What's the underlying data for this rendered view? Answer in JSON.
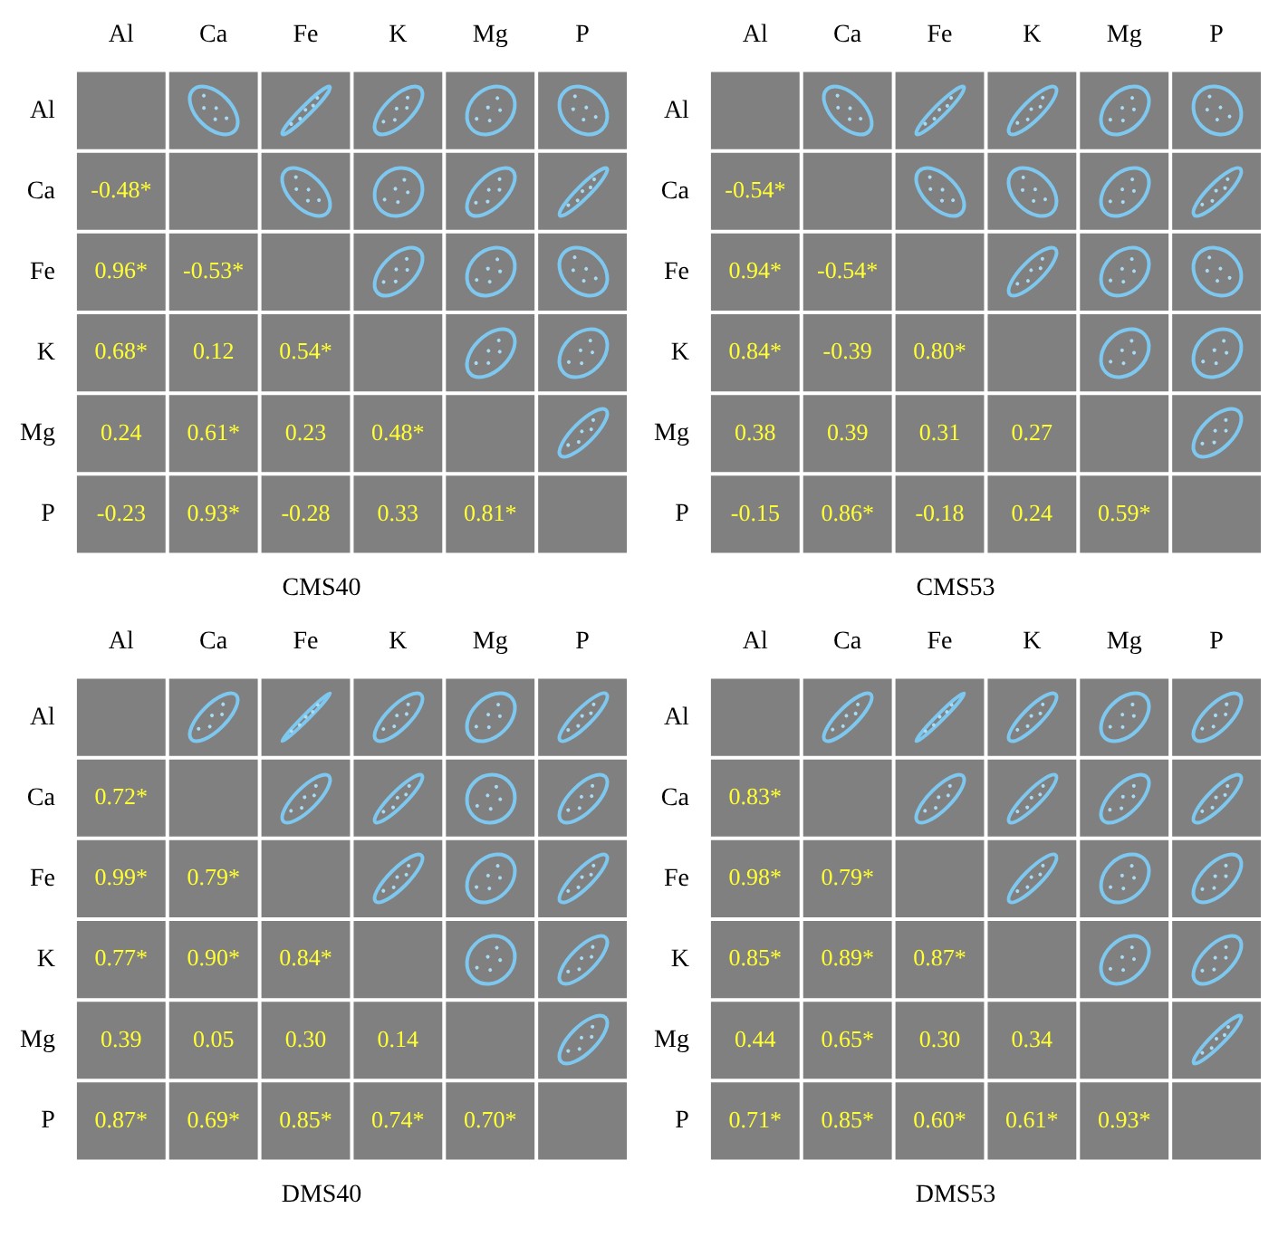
{
  "chart_data": [
    {
      "type": "heatmap",
      "title": "CMS40",
      "categories": [
        "Al",
        "Ca",
        "Fe",
        "K",
        "Mg",
        "P"
      ],
      "y_categories": [
        "Al",
        "Ca",
        "Fe",
        "K",
        "Mg",
        "P"
      ],
      "cells": [
        [
          null,
          null,
          null,
          null,
          null,
          null
        ],
        [
          -0.48,
          null,
          null,
          null,
          null,
          null
        ],
        [
          0.96,
          -0.53,
          null,
          null,
          null,
          null
        ],
        [
          0.68,
          0.12,
          0.54,
          null,
          null,
          null
        ],
        [
          0.24,
          0.61,
          0.23,
          0.48,
          null,
          null
        ],
        [
          -0.23,
          0.93,
          -0.28,
          0.33,
          0.81,
          null
        ]
      ],
      "cell_labels": [
        [
          null,
          null,
          null,
          null,
          null,
          null
        ],
        [
          "-0.48*",
          null,
          null,
          null,
          null,
          null
        ],
        [
          "0.96*",
          "-0.53*",
          null,
          null,
          null,
          null
        ],
        [
          "0.68*",
          "0.12",
          "0.54*",
          null,
          null,
          null
        ],
        [
          "0.24",
          "0.61*",
          "0.23",
          "0.48*",
          null,
          null
        ],
        [
          "-0.23",
          "0.93*",
          "-0.28",
          "0.33",
          "0.81*",
          null
        ]
      ]
    },
    {
      "type": "heatmap",
      "title": "CMS53",
      "categories": [
        "Al",
        "Ca",
        "Fe",
        "K",
        "Mg",
        "P"
      ],
      "y_categories": [
        "Al",
        "Ca",
        "Fe",
        "K",
        "Mg",
        "P"
      ],
      "cells": [
        [
          null,
          null,
          null,
          null,
          null,
          null
        ],
        [
          -0.54,
          null,
          null,
          null,
          null,
          null
        ],
        [
          0.94,
          -0.54,
          null,
          null,
          null,
          null
        ],
        [
          0.84,
          -0.39,
          0.8,
          null,
          null,
          null
        ],
        [
          0.38,
          0.39,
          0.31,
          0.27,
          null,
          null
        ],
        [
          -0.15,
          0.86,
          -0.18,
          0.24,
          0.59,
          null
        ]
      ],
      "cell_labels": [
        [
          null,
          null,
          null,
          null,
          null,
          null
        ],
        [
          "-0.54*",
          null,
          null,
          null,
          null,
          null
        ],
        [
          "0.94*",
          "-0.54*",
          null,
          null,
          null,
          null
        ],
        [
          "0.84*",
          "-0.39",
          "0.80*",
          null,
          null,
          null
        ],
        [
          "0.38",
          "0.39",
          "0.31",
          "0.27",
          null,
          null
        ],
        [
          "-0.15",
          "0.86*",
          "-0.18",
          "0.24",
          "0.59*",
          null
        ]
      ]
    },
    {
      "type": "heatmap",
      "title": "DMS40",
      "categories": [
        "Al",
        "Ca",
        "Fe",
        "K",
        "Mg",
        "P"
      ],
      "y_categories": [
        "Al",
        "Ca",
        "Fe",
        "K",
        "Mg",
        "P"
      ],
      "cells": [
        [
          null,
          null,
          null,
          null,
          null,
          null
        ],
        [
          0.72,
          null,
          null,
          null,
          null,
          null
        ],
        [
          0.99,
          0.79,
          null,
          null,
          null,
          null
        ],
        [
          0.77,
          0.9,
          0.84,
          null,
          null,
          null
        ],
        [
          0.39,
          0.05,
          0.3,
          0.14,
          null,
          null
        ],
        [
          0.87,
          0.69,
          0.85,
          0.74,
          0.7,
          null
        ]
      ],
      "cell_labels": [
        [
          null,
          null,
          null,
          null,
          null,
          null
        ],
        [
          "0.72*",
          null,
          null,
          null,
          null,
          null
        ],
        [
          "0.99*",
          "0.79*",
          null,
          null,
          null,
          null
        ],
        [
          "0.77*",
          "0.90*",
          "0.84*",
          null,
          null,
          null
        ],
        [
          "0.39",
          "0.05",
          "0.30",
          "0.14",
          null,
          null
        ],
        [
          "0.87*",
          "0.69*",
          "0.85*",
          "0.74*",
          "0.70*",
          null
        ]
      ]
    },
    {
      "type": "heatmap",
      "title": "DMS53",
      "categories": [
        "Al",
        "Ca",
        "Fe",
        "K",
        "Mg",
        "P"
      ],
      "y_categories": [
        "Al",
        "Ca",
        "Fe",
        "K",
        "Mg",
        "P"
      ],
      "cells": [
        [
          null,
          null,
          null,
          null,
          null,
          null
        ],
        [
          0.83,
          null,
          null,
          null,
          null,
          null
        ],
        [
          0.98,
          0.79,
          null,
          null,
          null,
          null
        ],
        [
          0.85,
          0.89,
          0.87,
          null,
          null,
          null
        ],
        [
          0.44,
          0.65,
          0.3,
          0.34,
          null,
          null
        ],
        [
          0.71,
          0.85,
          0.6,
          0.61,
          0.93,
          null
        ]
      ],
      "cell_labels": [
        [
          null,
          null,
          null,
          null,
          null,
          null
        ],
        [
          "0.83*",
          null,
          null,
          null,
          null,
          null
        ],
        [
          "0.98*",
          "0.79*",
          null,
          null,
          null,
          null
        ],
        [
          "0.85*",
          "0.89*",
          "0.87*",
          null,
          null,
          null
        ],
        [
          "0.44",
          "0.65*",
          "0.30",
          "0.34",
          null,
          null
        ],
        [
          "0.71*",
          "0.85*",
          "0.60*",
          "0.61*",
          "0.93*",
          null
        ]
      ]
    }
  ]
}
